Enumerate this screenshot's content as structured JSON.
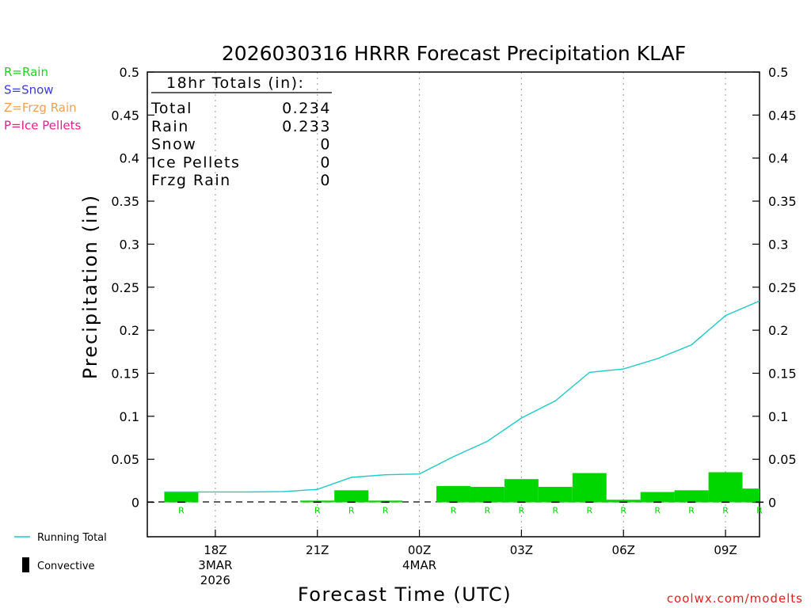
{
  "chart_data": {
    "type": "bar",
    "title": "2026030316 HRRR Forecast Precipitation KLAF",
    "xlabel": "Forecast Time (UTC)",
    "ylabel": "Precipitation (in)",
    "ylim": [
      -0.04,
      0.5
    ],
    "yticks": [
      "0",
      "0.05",
      "0.1",
      "0.15",
      "0.2",
      "0.25",
      "0.3",
      "0.35",
      "0.4",
      "0.45",
      "0.5"
    ],
    "x_ticks": [
      {
        "hour": 2,
        "lines": [
          "18Z",
          "3MAR",
          "2026"
        ]
      },
      {
        "hour": 5,
        "lines": [
          "21Z"
        ]
      },
      {
        "hour": 8,
        "lines": [
          "00Z",
          "4MAR"
        ]
      },
      {
        "hour": 11,
        "lines": [
          "03Z"
        ]
      },
      {
        "hour": 14,
        "lines": [
          "06Z"
        ]
      },
      {
        "hour": 17,
        "lines": [
          "09Z"
        ]
      }
    ],
    "legend_types": [
      {
        "label": "R=Rain",
        "color": "#1ed21e"
      },
      {
        "label": "S=Snow",
        "color": "#3c3cdc"
      },
      {
        "label": "Z=Frzg Rain",
        "color": "#f0a050"
      },
      {
        "label": "P=Ice Pellets",
        "color": "#e02090"
      }
    ],
    "legend_running_total": "Running Total",
    "legend_convective": "Convective",
    "totals_box": {
      "heading": "18hr Totals (in):",
      "rows": [
        {
          "label": "Total",
          "value": "0.234"
        },
        {
          "label": "Rain",
          "value": "0.233"
        },
        {
          "label": "Snow",
          "value": "0"
        },
        {
          "label": "Ice Pellets",
          "value": "0"
        },
        {
          "label": "Frzg Rain",
          "value": "0"
        }
      ]
    },
    "series": [
      {
        "kind": "bars",
        "color": "#00d700",
        "hours": [
          1,
          2,
          3,
          4,
          5,
          6,
          7,
          8,
          9,
          10,
          11,
          12,
          13,
          14,
          15,
          16,
          17,
          18
        ],
        "values": [
          0.012,
          0.0,
          0.0,
          0.0,
          0.002,
          0.014,
          0.002,
          0.0,
          0.019,
          0.018,
          0.027,
          0.018,
          0.034,
          0.003,
          0.012,
          0.014,
          0.035,
          0.016
        ],
        "type_markers": [
          "R",
          "",
          "",
          "",
          "R",
          "R",
          "R",
          "",
          "R",
          "R",
          "R",
          "R",
          "R",
          "R",
          "R",
          "R",
          "R",
          "R"
        ]
      },
      {
        "kind": "line",
        "name": "Running Total",
        "color": "#20c8c8",
        "hours": [
          0.5,
          1,
          2,
          3,
          4,
          5,
          6,
          7,
          8,
          9,
          10,
          11,
          12,
          13,
          14,
          15,
          16,
          17,
          18
        ],
        "values": [
          0.012,
          0.012,
          0.012,
          0.012,
          0.0125,
          0.015,
          0.029,
          0.032,
          0.033,
          0.053,
          0.071,
          0.098,
          0.118,
          0.151,
          0.155,
          0.167,
          0.183,
          0.217,
          0.234
        ]
      }
    ],
    "convective_color": "#000000",
    "credit": "coolwx.com/modelts",
    "credit_color": "#e02020"
  }
}
